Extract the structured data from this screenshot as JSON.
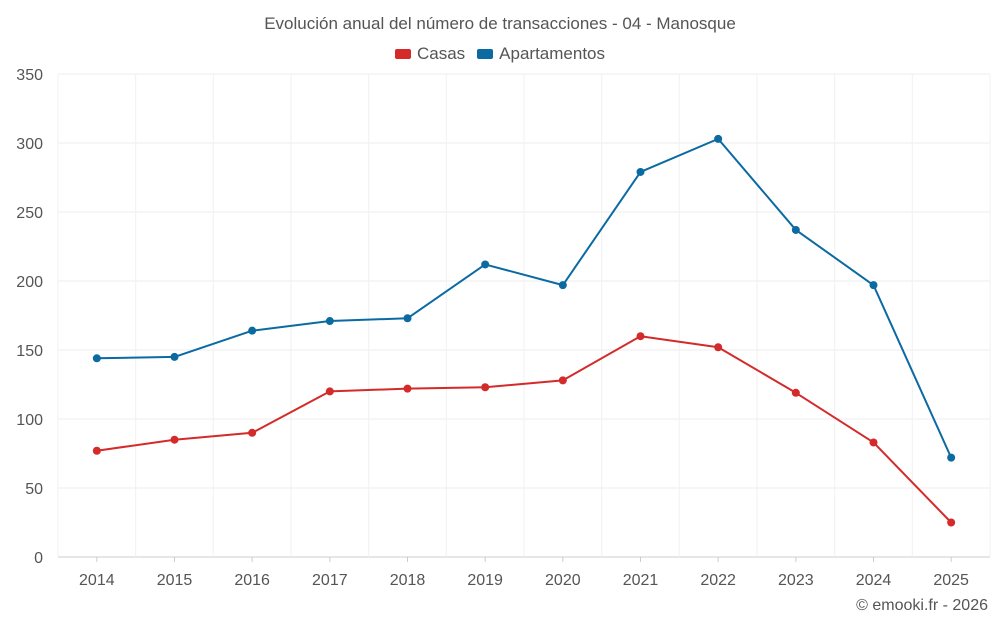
{
  "chart_data": {
    "type": "line",
    "title": "Evolución anual del número de transacciones - 04 - Manosque",
    "categories": [
      "2014",
      "2015",
      "2016",
      "2017",
      "2018",
      "2019",
      "2020",
      "2021",
      "2022",
      "2023",
      "2024",
      "2025"
    ],
    "series": [
      {
        "name": "Casas",
        "color": "#d42a2a",
        "values": [
          77,
          85,
          90,
          120,
          122,
          123,
          128,
          160,
          152,
          119,
          83,
          25
        ]
      },
      {
        "name": "Apartamentos",
        "color": "#0a6aa1",
        "values": [
          144,
          145,
          164,
          171,
          173,
          212,
          197,
          279,
          303,
          237,
          197,
          72
        ]
      }
    ],
    "ylim": [
      0,
      350
    ],
    "yticks": [
      0,
      50,
      100,
      150,
      200,
      250,
      300,
      350
    ],
    "xlabel": "",
    "ylabel": "",
    "grid": true,
    "legend": "top-center"
  },
  "footer": {
    "credit": "© emooki.fr - 2026"
  }
}
